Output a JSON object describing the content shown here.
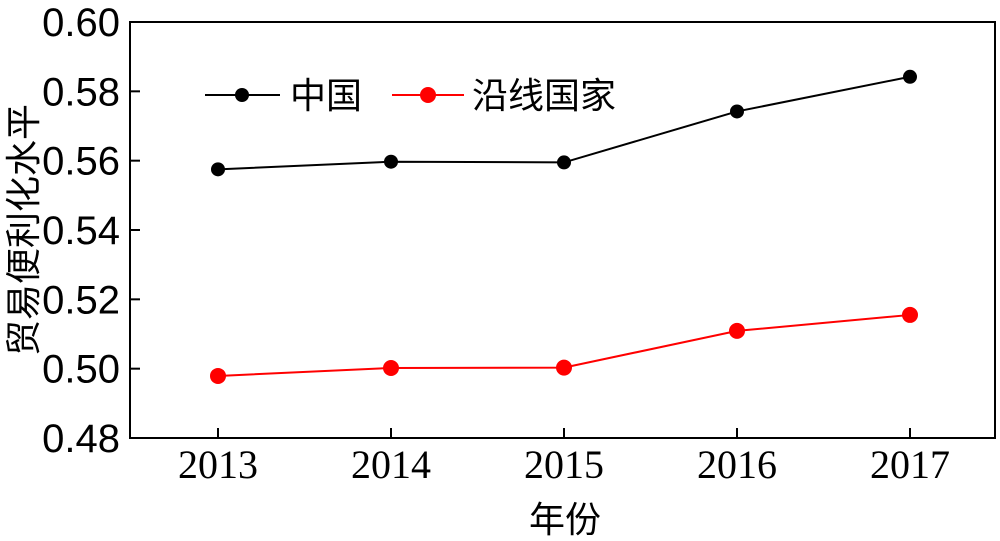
{
  "chart_data": {
    "type": "line",
    "title": "",
    "xlabel": "年份",
    "ylabel": "贸易便利化水平",
    "categories": [
      "2013",
      "2014",
      "2015",
      "2016",
      "2017"
    ],
    "ylim": [
      0.48,
      0.6
    ],
    "yticks": [
      "0.48",
      "0.50",
      "0.52",
      "0.54",
      "0.56",
      "0.58",
      "0.60"
    ],
    "grid": false,
    "legend_position": "top-left",
    "series": [
      {
        "name": "中国",
        "color": "#000000",
        "values": [
          0.5575,
          0.5597,
          0.5595,
          0.5742,
          0.5842
        ]
      },
      {
        "name": "沿线国家",
        "color": "#ff0000",
        "values": [
          0.4979,
          0.5002,
          0.5003,
          0.5109,
          0.5155
        ]
      }
    ]
  }
}
